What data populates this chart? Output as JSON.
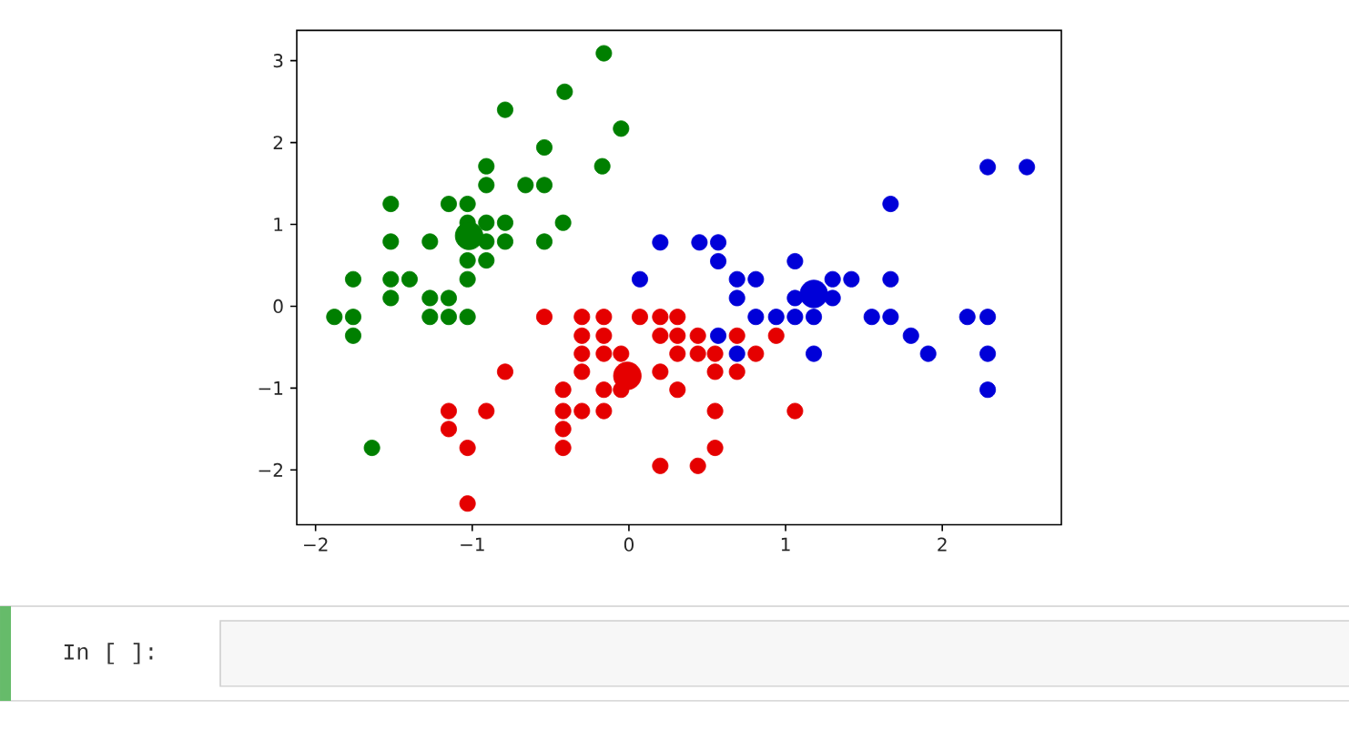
{
  "chart_data": {
    "type": "scatter",
    "xlim": [
      -2.12,
      2.76
    ],
    "ylim": [
      -2.67,
      3.37
    ],
    "xticks": [
      {
        "value": -2,
        "label": "−2"
      },
      {
        "value": -1,
        "label": "−1"
      },
      0,
      1,
      2
    ],
    "yticks": [
      {
        "value": -2,
        "label": "−2"
      },
      {
        "value": -1,
        "label": "−1"
      },
      0,
      1,
      2,
      3
    ],
    "marker": "circle",
    "series": [
      {
        "color": "#007f00",
        "x": [
          -0.16,
          -0.41,
          -0.05,
          -0.79,
          -0.54,
          -0.17,
          -0.91,
          -0.91,
          -0.66,
          -0.54,
          -1.52,
          -1.15,
          -1.03,
          -1.03,
          -0.91,
          -0.79,
          -0.42,
          -1.52,
          -1.27,
          -0.91,
          -0.79,
          -0.54,
          -1.03,
          -0.91,
          -1.76,
          -1.52,
          -1.4,
          -1.03,
          -1.52,
          -1.27,
          -1.15,
          -1.88,
          -1.76,
          -1.27,
          -1.15,
          -1.03,
          -1.76,
          -1.64
        ],
        "values": [
          3.09,
          2.62,
          2.17,
          2.4,
          1.94,
          1.71,
          1.71,
          1.48,
          1.48,
          1.48,
          1.25,
          1.25,
          1.25,
          1.02,
          1.02,
          1.02,
          1.02,
          0.79,
          0.79,
          0.79,
          0.79,
          0.79,
          0.56,
          0.56,
          0.33,
          0.33,
          0.33,
          0.33,
          0.1,
          0.1,
          0.1,
          -0.13,
          -0.13,
          -0.13,
          -0.13,
          -0.13,
          -0.36,
          -1.73
        ]
      },
      {
        "color": "#e50000",
        "x": [
          -0.54,
          -0.3,
          -0.16,
          0.07,
          0.2,
          0.31,
          -0.3,
          -0.16,
          0.2,
          0.31,
          0.44,
          0.69,
          0.94,
          -0.3,
          -0.16,
          -0.05,
          0.31,
          0.44,
          0.55,
          0.81,
          -0.79,
          -0.3,
          0.2,
          0.55,
          0.69,
          -0.42,
          -0.16,
          -0.05,
          0.31,
          -1.15,
          -0.91,
          -0.42,
          -0.3,
          -0.16,
          0.55,
          1.06,
          -1.15,
          -0.42,
          -1.03,
          -0.42,
          0.55,
          0.2,
          0.44,
          -1.03
        ],
        "values": [
          -0.13,
          -0.13,
          -0.13,
          -0.13,
          -0.13,
          -0.13,
          -0.36,
          -0.36,
          -0.36,
          -0.36,
          -0.36,
          -0.36,
          -0.36,
          -0.58,
          -0.58,
          -0.58,
          -0.58,
          -0.58,
          -0.58,
          -0.58,
          -0.8,
          -0.8,
          -0.8,
          -0.8,
          -0.8,
          -1.02,
          -1.02,
          -1.02,
          -1.02,
          -1.28,
          -1.28,
          -1.28,
          -1.28,
          -1.28,
          -1.28,
          -1.28,
          -1.5,
          -1.5,
          -1.73,
          -1.73,
          -1.73,
          -1.95,
          -1.95,
          -2.41
        ]
      },
      {
        "color": "#0000d8",
        "x": [
          2.29,
          2.54,
          1.67,
          0.2,
          0.45,
          0.57,
          0.57,
          1.06,
          0.07,
          0.69,
          0.81,
          1.3,
          1.42,
          1.67,
          0.69,
          1.06,
          1.3,
          0.81,
          0.94,
          1.06,
          1.18,
          1.55,
          1.67,
          2.16,
          2.29,
          0.57,
          1.8,
          0.69,
          1.18,
          1.91,
          2.29,
          2.29
        ],
        "values": [
          1.7,
          1.7,
          1.25,
          0.78,
          0.78,
          0.78,
          0.55,
          0.55,
          0.33,
          0.33,
          0.33,
          0.33,
          0.33,
          0.33,
          0.1,
          0.1,
          0.1,
          -0.13,
          -0.13,
          -0.13,
          -0.13,
          -0.13,
          -0.13,
          -0.13,
          -0.13,
          -0.36,
          -0.36,
          -0.58,
          -0.58,
          -0.58,
          -0.58,
          -1.02
        ]
      },
      {
        "type": "bubble",
        "x": [
          -1.02,
          -0.01,
          1.18
        ],
        "values": [
          0.86,
          -0.85,
          0.15
        ],
        "sizes": [
          1,
          1,
          1
        ],
        "colors": [
          "#007f00",
          "#e50000",
          "#0000d8"
        ]
      }
    ],
    "annotations": [
      "In [ ]:"
    ]
  }
}
